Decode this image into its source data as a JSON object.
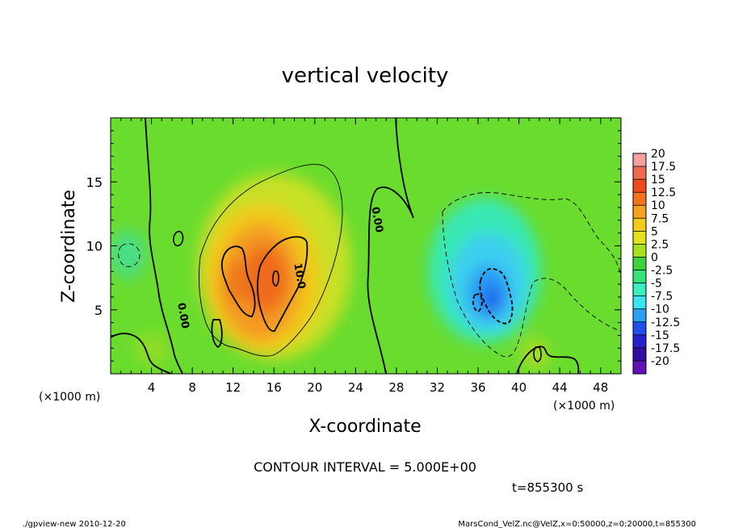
{
  "chart_data": {
    "type": "heatmap",
    "title": "vertical velocity",
    "xlabel": "X-coordinate",
    "ylabel": "Z-coordinate",
    "x_unit": "(×1000 m)",
    "y_unit": "(×1000 m)",
    "xlim": [
      0,
      50
    ],
    "ylim": [
      0,
      20
    ],
    "x_ticks": [
      4,
      8,
      12,
      16,
      20,
      24,
      28,
      32,
      36,
      40,
      44,
      48
    ],
    "x_tick_labels": [
      "4",
      "8",
      "12",
      "16",
      "20",
      "24",
      "28",
      "32",
      "36",
      "40",
      "44",
      "48"
    ],
    "y_ticks": [
      5,
      10,
      15
    ],
    "y_tick_labels": [
      "5",
      "10",
      "15"
    ],
    "contour_interval_text": "CONTOUR INTERVAL = 5.000E+00",
    "contour_labels": [
      {
        "text": "0.00",
        "x": 6.8,
        "z": 4.5,
        "angle": 80
      },
      {
        "text": "0.00",
        "x": 25.8,
        "z": 12.0,
        "angle": 80
      },
      {
        "text": "10.0",
        "x": 18.2,
        "z": 7.6,
        "angle": 80
      }
    ],
    "colorbar": {
      "levels": [
        "20",
        "17.5",
        "15",
        "12.5",
        "10",
        "7.5",
        "5",
        "2.5",
        "0",
        "-2.5",
        "-5",
        "-7.5",
        "-10",
        "-12.5",
        "-15",
        "-17.5",
        "-20"
      ],
      "colors": [
        "#f4a0a0",
        "#f06a50",
        "#ef4a1c",
        "#f3741c",
        "#f5a21e",
        "#f4cc1c",
        "#e4e21c",
        "#a8e01c",
        "#3cd43c",
        "#38e27a",
        "#3ceec0",
        "#3ce4ee",
        "#2ca0f4",
        "#2050ec",
        "#2820cc",
        "#3010a0",
        "#6010b8"
      ]
    },
    "features": [
      {
        "name": "updraft",
        "x_center": 16,
        "z_center": 7.5,
        "max_value": 15
      },
      {
        "name": "downdraft",
        "x_center": 37,
        "z_center": 6.5,
        "min_value": -12.5
      }
    ],
    "time_text": "t=855300 s"
  },
  "footer": {
    "left": "./gpview-new  2010-12-20",
    "right": "MarsCond_VelZ.nc@VelZ,x=0:50000,z=0:20000,t=855300"
  }
}
